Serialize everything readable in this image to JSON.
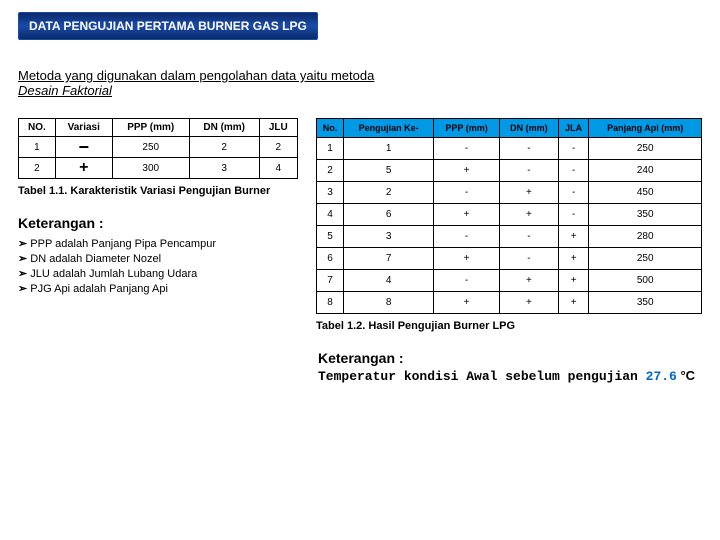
{
  "title": "DATA PENGUJIAN PERTAMA BURNER GAS LPG",
  "subtitle_prefix": "Metoda yang digunakan dalam pengolahan data yaitu metoda ",
  "subtitle_italic": "Desain Faktorial",
  "table1": {
    "headers": [
      "NO.",
      "Variasi",
      "PPP (mm)",
      "DN (mm)",
      "JLU"
    ],
    "rows": [
      {
        "no": "1",
        "variasi": "−",
        "ppp": "250",
        "dn": "2",
        "jlu": "2"
      },
      {
        "no": "2",
        "variasi": "+",
        "ppp": "300",
        "dn": "3",
        "jlu": "4"
      }
    ],
    "caption": "Tabel 1.1.  Karakteristik Variasi Pengujian Burner"
  },
  "keterangan_label": "Keterangan :",
  "keterangan_items": [
    "PPP adalah Panjang Pipa Pencampur",
    "DN  adalah Diameter Nozel",
    "JLU  adalah Jumlah Lubang Udara",
    "PJG Api adalah Panjang Api"
  ],
  "table2": {
    "headers": [
      "No.",
      "Pengujian Ke-",
      "PPP (mm)",
      "DN (mm)",
      "JLA",
      "Panjang Api (mm)"
    ],
    "rows": [
      [
        "1",
        "1",
        "-",
        "-",
        "-",
        "250"
      ],
      [
        "2",
        "5",
        "+",
        "-",
        "-",
        "240"
      ],
      [
        "3",
        "2",
        "-",
        "+",
        "-",
        "450"
      ],
      [
        "4",
        "6",
        "+",
        "+",
        "-",
        "350"
      ],
      [
        "5",
        "3",
        "-",
        "-",
        "+",
        "280"
      ],
      [
        "6",
        "7",
        "+",
        "-",
        "+",
        "250"
      ],
      [
        "7",
        "4",
        "-",
        "+",
        "+",
        "500"
      ],
      [
        "8",
        "8",
        "+",
        "+",
        "+",
        "350"
      ]
    ],
    "caption": "Tabel 1.2.  Hasil Pengujian Burner LPG"
  },
  "bottom_text_prefix": "Temperatur kondisi Awal sebelum pengujian ",
  "bottom_temp": "27.6",
  "bottom_unit": " °C",
  "colors": {
    "header_bg": "#0099e6",
    "title_bg": "#1a4aa8",
    "temp_color": "#0066cc"
  }
}
